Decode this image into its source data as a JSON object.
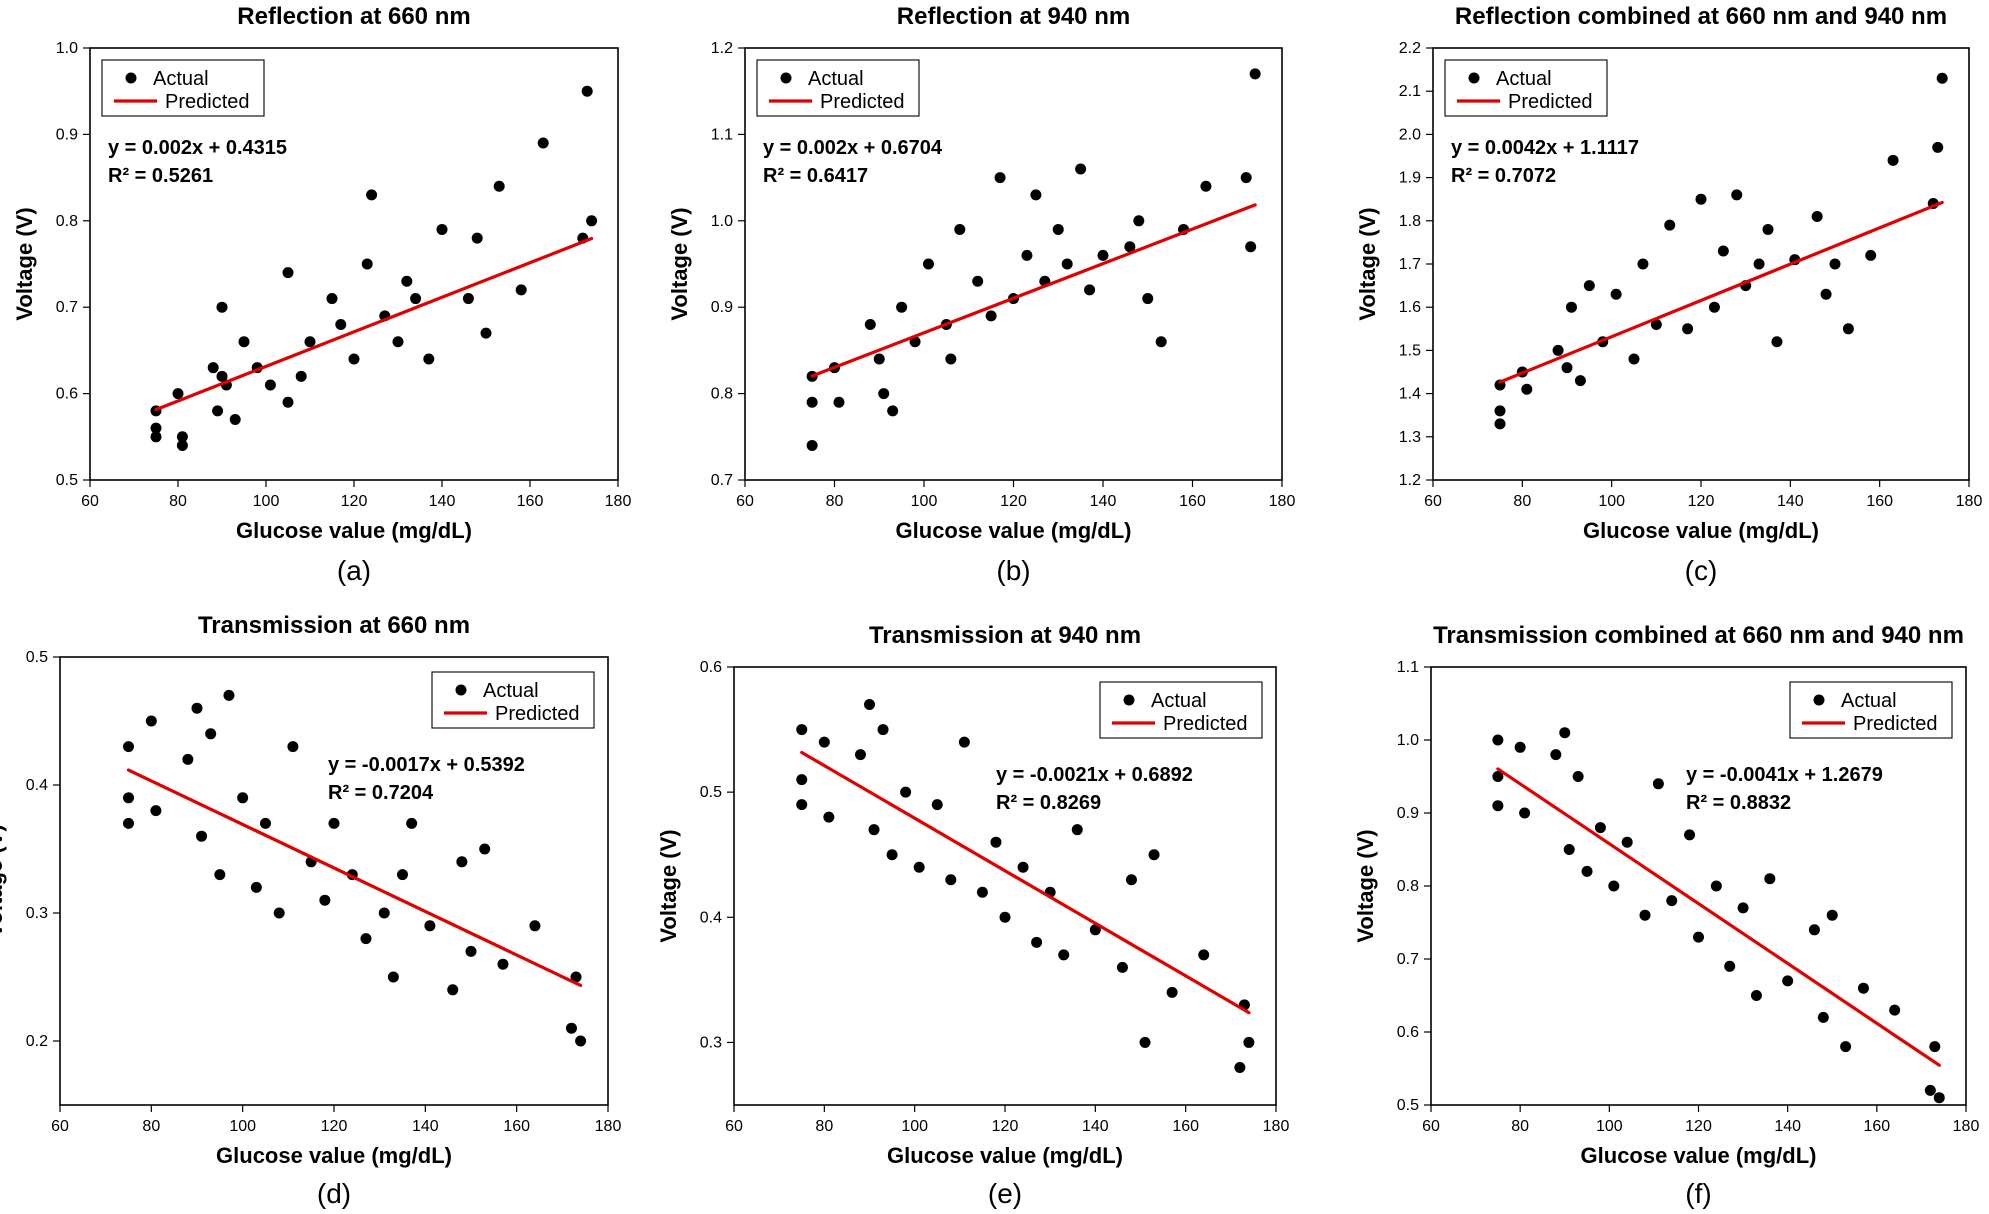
{
  "chart_data": [
    {
      "type": "scatter",
      "id": "a",
      "title": "Reflection at 660 nm",
      "caption": "(a)",
      "xlabel": "Glucose value (mg/dL)",
      "ylabel": "Voltage (V)",
      "xlim": [
        60,
        180
      ],
      "ylim": [
        0.5,
        1.0
      ],
      "xticks": [
        "60",
        "80",
        "100",
        "120",
        "140",
        "160",
        "180"
      ],
      "yticks": [
        "0.5",
        "0.6",
        "0.7",
        "0.8",
        "0.9",
        "1.0"
      ],
      "legend_position": "top-left",
      "legend_actual": "Actual",
      "legend_predicted": "Predicted",
      "fit_label": "y = 0.002x + 0.4315",
      "r2_label": "R² = 0.5261",
      "fit": {
        "slope": 0.002,
        "intercept": 0.4315
      },
      "series": [
        {
          "name": "Actual",
          "x": [
            75,
            75,
            75,
            80,
            81,
            81,
            88,
            89,
            90,
            90,
            91,
            93,
            95,
            98,
            101,
            105,
            105,
            108,
            110,
            115,
            117,
            120,
            123,
            124,
            127,
            130,
            132,
            134,
            137,
            140,
            146,
            148,
            150,
            153,
            158,
            163,
            172,
            173,
            174
          ],
          "y": [
            0.58,
            0.56,
            0.55,
            0.6,
            0.55,
            0.54,
            0.63,
            0.58,
            0.7,
            0.62,
            0.61,
            0.57,
            0.66,
            0.63,
            0.61,
            0.74,
            0.59,
            0.62,
            0.66,
            0.71,
            0.68,
            0.64,
            0.75,
            0.83,
            0.69,
            0.66,
            0.73,
            0.71,
            0.64,
            0.79,
            0.71,
            0.78,
            0.67,
            0.84,
            0.72,
            0.89,
            0.78,
            0.95,
            0.8
          ]
        },
        {
          "name": "Predicted",
          "x": [
            75,
            174
          ],
          "y": [
            0.5815,
            0.7795
          ]
        }
      ]
    },
    {
      "type": "scatter",
      "id": "b",
      "title": "Reflection at 940 nm",
      "caption": "(b)",
      "xlabel": "Glucose value (mg/dL)",
      "ylabel": "Voltage (V)",
      "xlim": [
        60,
        180
      ],
      "ylim": [
        0.7,
        1.2
      ],
      "xticks": [
        "60",
        "80",
        "100",
        "120",
        "140",
        "160",
        "180"
      ],
      "yticks": [
        "0.7",
        "0.8",
        "0.9",
        "1.0",
        "1.1",
        "1.2"
      ],
      "legend_position": "top-left",
      "legend_actual": "Actual",
      "legend_predicted": "Predicted",
      "fit_label": "y = 0.002x + 0.6704",
      "r2_label": "R² = 0.6417",
      "fit": {
        "slope": 0.002,
        "intercept": 0.6704
      },
      "series": [
        {
          "name": "Actual",
          "x": [
            75,
            75,
            75,
            80,
            81,
            88,
            90,
            91,
            93,
            95,
            98,
            101,
            105,
            106,
            108,
            112,
            115,
            117,
            120,
            123,
            125,
            127,
            130,
            132,
            135,
            137,
            140,
            146,
            148,
            150,
            153,
            158,
            163,
            172,
            173,
            174
          ],
          "y": [
            0.82,
            0.79,
            0.74,
            0.83,
            0.79,
            0.88,
            0.84,
            0.8,
            0.78,
            0.9,
            0.86,
            0.95,
            0.88,
            0.84,
            0.99,
            0.93,
            0.89,
            1.05,
            0.91,
            0.96,
            1.03,
            0.93,
            0.99,
            0.95,
            1.06,
            0.92,
            0.96,
            0.97,
            1.0,
            0.91,
            0.86,
            0.99,
            1.04,
            1.05,
            0.97,
            1.17
          ]
        },
        {
          "name": "Predicted",
          "x": [
            75,
            174
          ],
          "y": [
            0.8204,
            1.0184
          ]
        }
      ]
    },
    {
      "type": "scatter",
      "id": "c",
      "title": "Reflection combined at 660 nm and 940 nm",
      "caption": "(c)",
      "xlabel": "Glucose value (mg/dL)",
      "ylabel": "Voltage (V)",
      "xlim": [
        60,
        180
      ],
      "ylim": [
        1.2,
        2.2
      ],
      "xticks": [
        "60",
        "80",
        "100",
        "120",
        "140",
        "160",
        "180"
      ],
      "yticks": [
        "1.2",
        "1.3",
        "1.4",
        "1.5",
        "1.6",
        "1.7",
        "1.8",
        "1.9",
        "2.0",
        "2.1",
        "2.2"
      ],
      "legend_position": "top-left",
      "legend_actual": "Actual",
      "legend_predicted": "Predicted",
      "fit_label": "y = 0.0042x + 1.1117",
      "r2_label": "R² = 0.7072",
      "fit": {
        "slope": 0.0042,
        "intercept": 1.1117
      },
      "series": [
        {
          "name": "Actual",
          "x": [
            75,
            75,
            75,
            80,
            81,
            88,
            90,
            91,
            93,
            95,
            98,
            101,
            105,
            107,
            110,
            113,
            117,
            120,
            123,
            125,
            128,
            130,
            133,
            135,
            137,
            141,
            146,
            148,
            150,
            153,
            158,
            163,
            172,
            173,
            174
          ],
          "y": [
            1.42,
            1.36,
            1.33,
            1.45,
            1.41,
            1.5,
            1.46,
            1.6,
            1.43,
            1.65,
            1.52,
            1.63,
            1.48,
            1.7,
            1.56,
            1.79,
            1.55,
            1.85,
            1.6,
            1.73,
            1.86,
            1.65,
            1.7,
            1.78,
            1.52,
            1.71,
            1.81,
            1.63,
            1.7,
            1.55,
            1.72,
            1.94,
            1.84,
            1.97,
            2.13
          ]
        },
        {
          "name": "Predicted",
          "x": [
            75,
            174
          ],
          "y": [
            1.4267,
            1.8425
          ]
        }
      ]
    },
    {
      "type": "scatter",
      "id": "d",
      "title": "Transmission at 660 nm",
      "caption": "(d)",
      "xlabel": "Glucose value (mg/dL)",
      "ylabel": "Voltage (V)",
      "xlim": [
        60,
        180
      ],
      "ylim": [
        0.15,
        0.5
      ],
      "xticks": [
        "60",
        "80",
        "100",
        "120",
        "140",
        "160",
        "180"
      ],
      "yticks": [
        "0.2",
        "0.3",
        "0.4",
        "0.5"
      ],
      "legend_position": "top-right",
      "legend_actual": "Actual",
      "legend_predicted": "Predicted",
      "fit_label": "y = -0.0017x + 0.5392",
      "r2_label": "R² = 0.7204",
      "fit": {
        "slope": -0.0017,
        "intercept": 0.5392
      },
      "series": [
        {
          "name": "Actual",
          "x": [
            75,
            75,
            75,
            80,
            81,
            88,
            90,
            91,
            93,
            95,
            97,
            100,
            103,
            105,
            108,
            111,
            115,
            118,
            120,
            124,
            127,
            131,
            133,
            135,
            137,
            141,
            146,
            148,
            150,
            153,
            157,
            164,
            172,
            173,
            174
          ],
          "y": [
            0.43,
            0.39,
            0.37,
            0.45,
            0.38,
            0.42,
            0.46,
            0.36,
            0.44,
            0.33,
            0.47,
            0.39,
            0.32,
            0.37,
            0.3,
            0.43,
            0.34,
            0.31,
            0.37,
            0.33,
            0.28,
            0.3,
            0.25,
            0.33,
            0.37,
            0.29,
            0.24,
            0.34,
            0.27,
            0.35,
            0.26,
            0.29,
            0.21,
            0.25,
            0.2
          ]
        },
        {
          "name": "Predicted",
          "x": [
            75,
            174
          ],
          "y": [
            0.4117,
            0.2434
          ]
        }
      ]
    },
    {
      "type": "scatter",
      "id": "e",
      "title": "Transmission at 940 nm",
      "caption": "(e)",
      "xlabel": "Glucose value (mg/dL)",
      "ylabel": "Voltage (V)",
      "xlim": [
        60,
        180
      ],
      "ylim": [
        0.25,
        0.6
      ],
      "xticks": [
        "60",
        "80",
        "100",
        "120",
        "140",
        "160",
        "180"
      ],
      "yticks": [
        "0.3",
        "0.4",
        "0.5",
        "0.6"
      ],
      "legend_position": "top-right",
      "legend_actual": "Actual",
      "legend_predicted": "Predicted",
      "fit_label": "y = -0.0021x + 0.6892",
      "r2_label": "R² = 0.8269",
      "fit": {
        "slope": -0.0021,
        "intercept": 0.6892
      },
      "series": [
        {
          "name": "Actual",
          "x": [
            75,
            75,
            75,
            80,
            81,
            88,
            90,
            91,
            93,
            95,
            98,
            101,
            105,
            108,
            111,
            115,
            118,
            120,
            124,
            127,
            130,
            133,
            136,
            140,
            146,
            148,
            151,
            153,
            157,
            164,
            172,
            173,
            174
          ],
          "y": [
            0.55,
            0.51,
            0.49,
            0.54,
            0.48,
            0.53,
            0.57,
            0.47,
            0.55,
            0.45,
            0.5,
            0.44,
            0.49,
            0.43,
            0.54,
            0.42,
            0.46,
            0.4,
            0.44,
            0.38,
            0.42,
            0.37,
            0.47,
            0.39,
            0.36,
            0.43,
            0.3,
            0.45,
            0.34,
            0.37,
            0.28,
            0.33,
            0.3
          ]
        },
        {
          "name": "Predicted",
          "x": [
            75,
            174
          ],
          "y": [
            0.5317,
            0.3238
          ]
        }
      ]
    },
    {
      "type": "scatter",
      "id": "f",
      "title": "Transmission combined at 660 nm and 940 nm",
      "caption": "(f)",
      "xlabel": "Glucose value (mg/dL)",
      "ylabel": "Voltage (V)",
      "xlim": [
        60,
        180
      ],
      "ylim": [
        0.5,
        1.1
      ],
      "xticks": [
        "60",
        "80",
        "100",
        "120",
        "140",
        "160",
        "180"
      ],
      "yticks": [
        "0.5",
        "0.6",
        "0.7",
        "0.8",
        "0.9",
        "1.0",
        "1.1"
      ],
      "legend_position": "top-right",
      "legend_actual": "Actual",
      "legend_predicted": "Predicted",
      "fit_label": "y = -0.0041x + 1.2679",
      "r2_label": "R² = 0.8832",
      "fit": {
        "slope": -0.0041,
        "intercept": 1.2679
      },
      "series": [
        {
          "name": "Actual",
          "x": [
            75,
            75,
            75,
            80,
            81,
            88,
            90,
            91,
            93,
            95,
            98,
            101,
            104,
            108,
            111,
            114,
            118,
            120,
            124,
            127,
            130,
            133,
            136,
            140,
            146,
            148,
            150,
            153,
            157,
            164,
            172,
            173,
            174
          ],
          "y": [
            1.0,
            0.95,
            0.91,
            0.99,
            0.9,
            0.98,
            1.01,
            0.85,
            0.95,
            0.82,
            0.88,
            0.8,
            0.86,
            0.76,
            0.94,
            0.78,
            0.87,
            0.73,
            0.8,
            0.69,
            0.77,
            0.65,
            0.81,
            0.67,
            0.74,
            0.62,
            0.76,
            0.58,
            0.66,
            0.63,
            0.52,
            0.58,
            0.51
          ]
        },
        {
          "name": "Predicted",
          "x": [
            75,
            174
          ],
          "y": [
            0.9604,
            0.5545
          ]
        }
      ]
    }
  ]
}
